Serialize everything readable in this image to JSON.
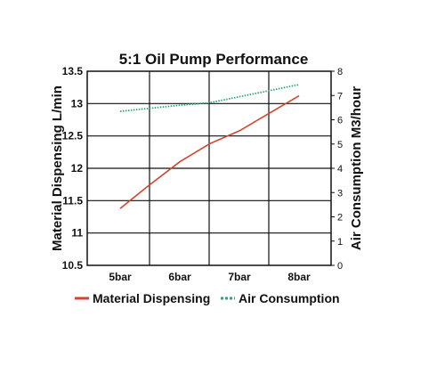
{
  "chart_data": {
    "type": "line",
    "title": "5:1 Oil Pump Performance",
    "categories": [
      "5bar",
      "6bar",
      "7bar",
      "8bar"
    ],
    "ylabel": "Material Dispensing L/min",
    "y2label": "Air Consumption M3/hour",
    "ylim": [
      10.5,
      13.5
    ],
    "yticks": [
      "10.5",
      "11",
      "11.5",
      "12",
      "12.5",
      "13",
      "13.5"
    ],
    "y2lim": [
      0,
      8
    ],
    "y2ticks": [
      "0",
      "1",
      "2",
      "3",
      "4",
      "5",
      "6",
      "7",
      "8"
    ],
    "grid": true,
    "legend_position": "bottom",
    "series": [
      {
        "name": "Material Dispensing",
        "axis": "left",
        "color": "#d4452c",
        "style": "solid",
        "x": [
          0,
          0.5,
          1,
          1.5,
          2,
          2.5,
          3
        ],
        "values": [
          11.38,
          11.75,
          12.1,
          12.38,
          12.58,
          12.85,
          13.12
        ]
      },
      {
        "name": "Air Consumption",
        "axis": "right",
        "color": "#2aa774",
        "style": "dotted",
        "x": [
          0,
          1,
          1.5,
          2,
          3
        ],
        "values": [
          6.35,
          6.6,
          6.7,
          6.95,
          7.45
        ]
      }
    ]
  }
}
